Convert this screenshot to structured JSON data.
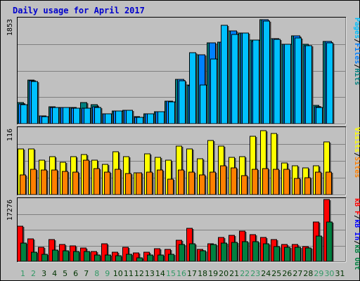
{
  "title": "Daily usage for April 2017",
  "colors": {
    "background": "#c0c0c0",
    "border": "#000000",
    "title_text": "#0000cc",
    "day_label_weekday": "#003300",
    "day_label_weekend": "#339966",
    "pages": "#00c0ff",
    "files": "#0080ff",
    "hits": "#008080",
    "visits": "#ffff00",
    "sites": "#ff8000",
    "kb_f": "#ff0000",
    "kb_in": "#0000ff",
    "kb_out": "#008040"
  },
  "chart_data": [
    {
      "type": "bar",
      "panel": "pages-files-hits",
      "ymax_label": "1853",
      "ylim": [
        0,
        1853
      ],
      "legend": [
        {
          "text": "Pages",
          "color": "#00c0ff"
        },
        {
          "text": "/",
          "color": "#000000"
        },
        {
          "text": "Files",
          "color": "#0080ff"
        },
        {
          "text": "/",
          "color": "#000000"
        },
        {
          "text": "Hits",
          "color": "#008080"
        }
      ],
      "categories": [
        "1",
        "2",
        "3",
        "4",
        "5",
        "6",
        "7",
        "8",
        "9",
        "10",
        "11",
        "12",
        "13",
        "14",
        "15",
        "16",
        "17",
        "18",
        "19",
        "20",
        "21",
        "22",
        "23",
        "24",
        "25",
        "26",
        "27",
        "28",
        "29",
        "30",
        "31"
      ],
      "series": [
        {
          "name": "Hits",
          "color": "#008080",
          "values": [
            370,
            770,
            140,
            300,
            290,
            280,
            370,
            330,
            180,
            230,
            240,
            120,
            170,
            210,
            400,
            780,
            680,
            1220,
            1430,
            1440,
            1640,
            1600,
            1480,
            1840,
            1510,
            1410,
            1550,
            1400,
            320,
            1450,
            0
          ]
        },
        {
          "name": "Files",
          "color": "#0080ff",
          "values": [
            350,
            760,
            140,
            290,
            280,
            270,
            270,
            300,
            170,
            220,
            240,
            110,
            180,
            210,
            400,
            780,
            670,
            1220,
            1430,
            1440,
            1640,
            1600,
            1460,
            1840,
            1500,
            1410,
            1550,
            1380,
            300,
            1450,
            0
          ]
        },
        {
          "name": "Pages",
          "color": "#00c0ff",
          "values": [
            340,
            750,
            130,
            280,
            280,
            270,
            270,
            290,
            170,
            220,
            240,
            110,
            170,
            210,
            380,
            760,
            1260,
            680,
            1150,
            1740,
            1580,
            1610,
            1480,
            1810,
            1490,
            1400,
            1520,
            1380,
            290,
            1430,
            0
          ]
        }
      ]
    },
    {
      "type": "bar",
      "panel": "visits-sites",
      "ymax_label": "116",
      "ylim": [
        0,
        116
      ],
      "legend": [
        {
          "text": "Visits",
          "color": "#ffff00"
        },
        {
          "text": "/",
          "color": "#000000"
        },
        {
          "text": "Sites",
          "color": "#ff8000"
        }
      ],
      "categories": [
        "1",
        "2",
        "3",
        "4",
        "5",
        "6",
        "7",
        "8",
        "9",
        "10",
        "11",
        "12",
        "13",
        "14",
        "15",
        "16",
        "17",
        "18",
        "19",
        "20",
        "21",
        "22",
        "23",
        "24",
        "25",
        "26",
        "27",
        "28",
        "29",
        "30",
        "31"
      ],
      "series": [
        {
          "name": "Visits",
          "color": "#ffff00",
          "values": [
            80,
            80,
            60,
            67,
            57,
            67,
            70,
            60,
            53,
            75,
            67,
            38,
            72,
            65,
            60,
            85,
            80,
            63,
            95,
            85,
            65,
            67,
            102,
            112,
            107,
            55,
            50,
            47,
            50,
            92,
            0
          ]
        },
        {
          "name": "Sites",
          "color": "#ff8000",
          "values": [
            35,
            45,
            43,
            43,
            41,
            40,
            61,
            46,
            39,
            45,
            37,
            38,
            40,
            43,
            27,
            43,
            40,
            35,
            40,
            51,
            47,
            33,
            45,
            46,
            45,
            44,
            28,
            29,
            40,
            40,
            0
          ]
        }
      ]
    },
    {
      "type": "bar",
      "panel": "kb-f-in-out",
      "ymax_label": "17276",
      "ylim": [
        0,
        17276
      ],
      "legend": [
        {
          "text": "kB F",
          "color": "#ff0000"
        },
        {
          "text": "/",
          "color": "#000000"
        },
        {
          "text": "kB In",
          "color": "#0000ff"
        },
        {
          "text": "/",
          "color": "#000000"
        },
        {
          "text": "kB Out",
          "color": "#008040"
        }
      ],
      "categories": [
        "1",
        "2",
        "3",
        "4",
        "5",
        "6",
        "7",
        "8",
        "9",
        "10",
        "11",
        "12",
        "13",
        "14",
        "15",
        "16",
        "17",
        "18",
        "19",
        "20",
        "21",
        "22",
        "23",
        "24",
        "25",
        "26",
        "27",
        "28",
        "29",
        "30",
        "31"
      ],
      "series": [
        {
          "name": "kB F",
          "color": "#ff0000",
          "values": [
            9800,
            6300,
            4000,
            6000,
            4800,
            4300,
            3800,
            2700,
            5000,
            2500,
            4000,
            2300,
            2600,
            3500,
            3300,
            5900,
            9200,
            3300,
            5000,
            6700,
            7200,
            8500,
            7400,
            6700,
            6000,
            4800,
            4700,
            4100,
            10900,
            17276,
            0
          ]
        },
        {
          "name": "kB In",
          "color": "#0000ff",
          "values": [
            20,
            20,
            20,
            20,
            20,
            20,
            20,
            20,
            20,
            20,
            20,
            20,
            20,
            20,
            20,
            20,
            20,
            20,
            20,
            20,
            20,
            20,
            20,
            20,
            20,
            20,
            20,
            20,
            20,
            20,
            0
          ]
        },
        {
          "name": "kB Out",
          "color": "#008040",
          "values": [
            5200,
            2600,
            1900,
            3200,
            3000,
            2800,
            2700,
            1800,
            1700,
            1600,
            1900,
            1000,
            1700,
            1800,
            1900,
            4700,
            4900,
            2900,
            4700,
            5200,
            5300,
            5500,
            5400,
            5000,
            4200,
            4000,
            3900,
            3800,
            7100,
            11000,
            0
          ]
        }
      ]
    }
  ]
}
